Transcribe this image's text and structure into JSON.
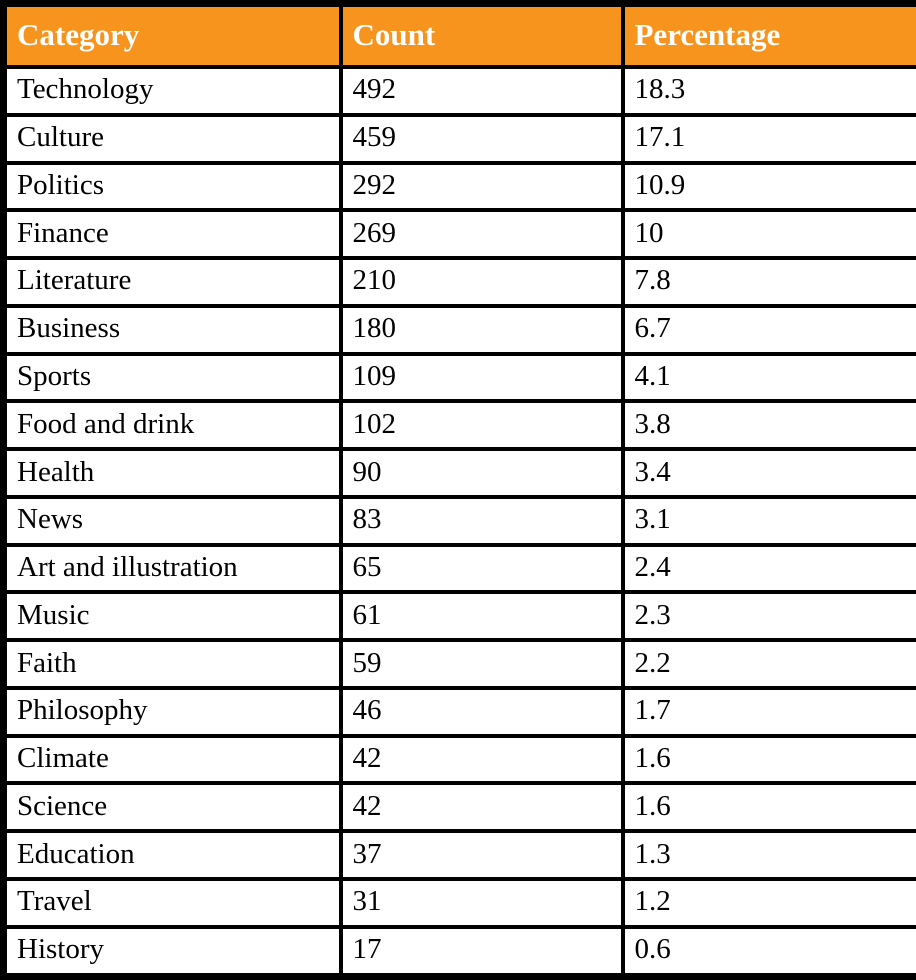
{
  "colors": {
    "header_bg": "#F7941E",
    "header_text": "#FFFFFF",
    "border": "#000000",
    "body_text": "#000000",
    "row_bg": "#FFFFFF"
  },
  "table": {
    "columns": [
      "Category",
      "Count",
      "Percentage"
    ],
    "rows": [
      {
        "category": "Technology",
        "count": "492",
        "percentage": "18.3"
      },
      {
        "category": "Culture",
        "count": "459",
        "percentage": "17.1"
      },
      {
        "category": "Politics",
        "count": "292",
        "percentage": "10.9"
      },
      {
        "category": "Finance",
        "count": "269",
        "percentage": "10"
      },
      {
        "category": "Literature",
        "count": "210",
        "percentage": "7.8"
      },
      {
        "category": "Business",
        "count": "180",
        "percentage": "6.7"
      },
      {
        "category": "Sports",
        "count": "109",
        "percentage": "4.1"
      },
      {
        "category": "Food and drink",
        "count": "102",
        "percentage": "3.8"
      },
      {
        "category": "Health",
        "count": "90",
        "percentage": "3.4"
      },
      {
        "category": "News",
        "count": "83",
        "percentage": "3.1"
      },
      {
        "category": "Art and illustration",
        "count": "65",
        "percentage": "2.4"
      },
      {
        "category": "Music",
        "count": "61",
        "percentage": "2.3"
      },
      {
        "category": "Faith",
        "count": "59",
        "percentage": "2.2"
      },
      {
        "category": "Philosophy",
        "count": "46",
        "percentage": "1.7"
      },
      {
        "category": "Climate",
        "count": "42",
        "percentage": "1.6"
      },
      {
        "category": "Science",
        "count": "42",
        "percentage": "1.6"
      },
      {
        "category": "Education",
        "count": "37",
        "percentage": "1.3"
      },
      {
        "category": "Travel",
        "count": "31",
        "percentage": "1.2"
      },
      {
        "category": "History",
        "count": "17",
        "percentage": "0.6"
      }
    ]
  },
  "chart_data": {
    "type": "table",
    "title": "",
    "columns": [
      "Category",
      "Count",
      "Percentage"
    ],
    "categories": [
      "Technology",
      "Culture",
      "Politics",
      "Finance",
      "Literature",
      "Business",
      "Sports",
      "Food and drink",
      "Health",
      "News",
      "Art and illustration",
      "Music",
      "Faith",
      "Philosophy",
      "Climate",
      "Science",
      "Education",
      "Travel",
      "History"
    ],
    "series": [
      {
        "name": "Count",
        "values": [
          492,
          459,
          292,
          269,
          210,
          180,
          109,
          102,
          90,
          83,
          65,
          61,
          59,
          46,
          42,
          42,
          37,
          31,
          17
        ]
      },
      {
        "name": "Percentage",
        "values": [
          18.3,
          17.1,
          10.9,
          10,
          7.8,
          6.7,
          4.1,
          3.8,
          3.4,
          3.1,
          2.4,
          2.3,
          2.2,
          1.7,
          1.6,
          1.6,
          1.3,
          1.2,
          0.6
        ]
      }
    ],
    "layout": {
      "header_fill": "#F7941E",
      "header_text_color": "#FFFFFF",
      "grid": "on"
    }
  }
}
